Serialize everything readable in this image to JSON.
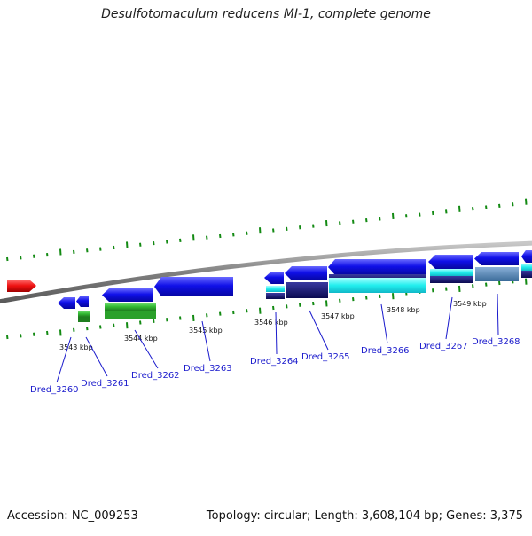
{
  "title": "Desulfotomaculum reducens MI-1, complete genome",
  "accession_label": "Accession: NC_009253",
  "summary_label": "Topology: circular; Length: 3,608,104 bp; Genes: 3,375",
  "colors": {
    "forward_gene": "#1010e8",
    "reverse_gene_red": "#ee1111",
    "cog_green": "#33bb33",
    "cog_cyan": "#22eeee",
    "cog_navy": "#101070",
    "cog_steel": "#4a7aa8",
    "backbone": "#888888",
    "tick": "#138a13",
    "label": "#1a1acc"
  },
  "scale_ticks": [
    {
      "label": "3543 kbp"
    },
    {
      "label": "3544 kbp"
    },
    {
      "label": "3545 kbp"
    },
    {
      "label": "3546 kbp"
    },
    {
      "label": "3547 kbp"
    },
    {
      "label": "3548 kbp"
    },
    {
      "label": "3549 kbp"
    }
  ],
  "genes": [
    {
      "label": "Dred_3260"
    },
    {
      "label": "Dred_3261"
    },
    {
      "label": "Dred_3262"
    },
    {
      "label": "Dred_3263"
    },
    {
      "label": "Dred_3264"
    },
    {
      "label": "Dred_3265"
    },
    {
      "label": "Dred_3266"
    },
    {
      "label": "Dred_3267"
    },
    {
      "label": "Dred_3268"
    }
  ]
}
